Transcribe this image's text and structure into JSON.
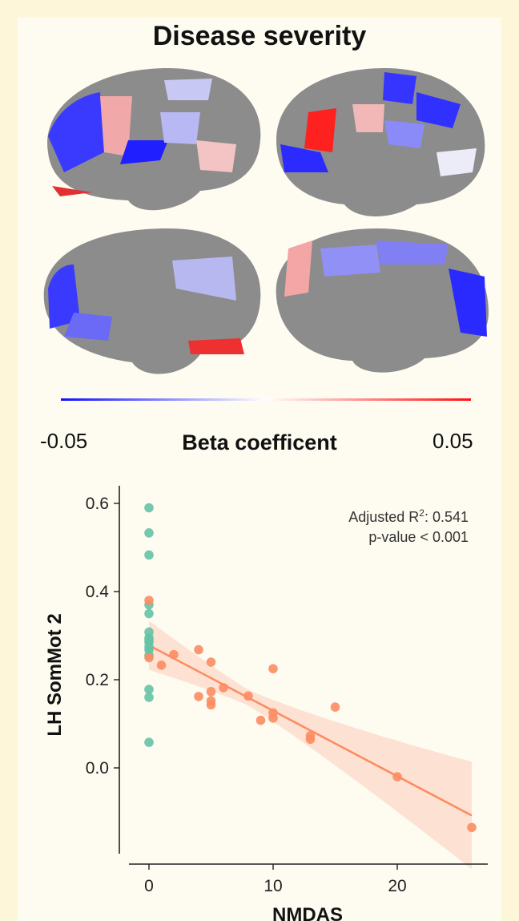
{
  "figure": {
    "title": "Disease severity",
    "colorbar": {
      "min_label": "-0.05",
      "max_label": "0.05",
      "title": "Beta coefficent",
      "colors": [
        "#1010ff",
        "#ffffff",
        "#ff1010"
      ]
    }
  },
  "chart_data": {
    "type": "scatter",
    "xlabel": "NMDAS",
    "ylabel": "LH SomMot 2",
    "xlim": [
      -2,
      27.5
    ],
    "ylim": [
      -0.19,
      0.64
    ],
    "xticks": [
      0,
      10,
      20
    ],
    "yticks": [
      0.0,
      0.2,
      0.4,
      0.6
    ],
    "annotation": {
      "prefix": "Adjusted R",
      "sup": "2",
      "r2": ": 0.541",
      "pvalue": "p-value < 0.001"
    },
    "series": [
      {
        "color": "#66c2a5",
        "x": [
          0,
          0,
          0,
          0,
          0,
          0,
          0,
          0,
          0,
          0,
          0,
          0,
          0,
          0,
          0
        ],
        "y": [
          0.59,
          0.533,
          0.483,
          0.37,
          0.35,
          0.308,
          0.295,
          0.285,
          0.275,
          0.268,
          0.255,
          0.178,
          0.16,
          0.058,
          0.29
        ]
      },
      {
        "color": "#fc8d62",
        "x": [
          0,
          0,
          1,
          2,
          4,
          4,
          5,
          5,
          5,
          5,
          6,
          8,
          9,
          10,
          10,
          10,
          13,
          13,
          15,
          20,
          26
        ],
        "y": [
          0.38,
          0.25,
          0.233,
          0.257,
          0.268,
          0.162,
          0.24,
          0.173,
          0.152,
          0.143,
          0.182,
          0.163,
          0.108,
          0.225,
          0.125,
          0.113,
          0.073,
          0.065,
          0.138,
          -0.02,
          -0.135
        ]
      }
    ],
    "fit": {
      "x": [
        0,
        26
      ],
      "y": [
        0.278,
        -0.108
      ],
      "color": "#fc8d62",
      "band_color": "#fcd7c6"
    }
  }
}
